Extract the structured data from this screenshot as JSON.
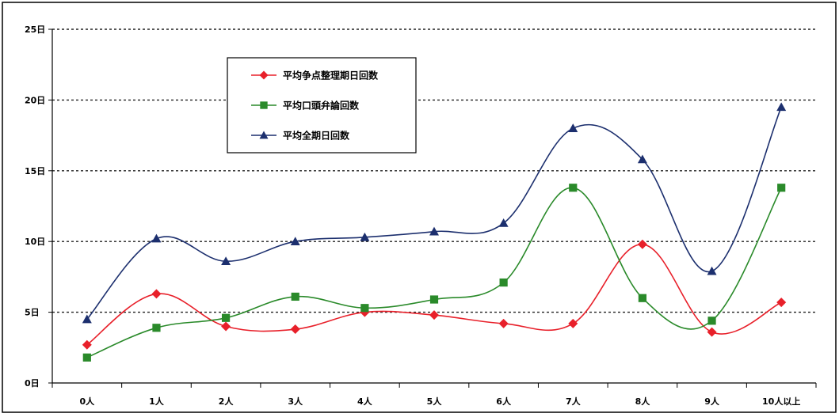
{
  "chart_data": {
    "type": "line",
    "smooth": true,
    "categories": [
      "0人",
      "1人",
      "2人",
      "3人",
      "4人",
      "5人",
      "6人",
      "7人",
      "8人",
      "9人",
      "10人以上"
    ],
    "y_ticks": [
      {
        "value": 0,
        "label": "0日"
      },
      {
        "value": 5,
        "label": "5日"
      },
      {
        "value": 10,
        "label": "10日"
      },
      {
        "value": 15,
        "label": "15日"
      },
      {
        "value": 20,
        "label": "20日"
      },
      {
        "value": 25,
        "label": "25日"
      }
    ],
    "ylim": [
      0,
      25
    ],
    "grid": true,
    "grid_style": "dashed",
    "legend_position": "top-left",
    "series": [
      {
        "name": "平均争点整理期日回数",
        "color": "#e8202a",
        "marker": "diamond",
        "values": [
          2.7,
          6.3,
          4.0,
          3.8,
          5.0,
          4.8,
          4.2,
          4.2,
          9.8,
          3.6,
          5.7
        ]
      },
      {
        "name": "平均口頭弁論回数",
        "color": "#2a8a2a",
        "marker": "square",
        "values": [
          1.8,
          3.9,
          4.6,
          6.1,
          5.3,
          5.9,
          7.1,
          13.8,
          6.0,
          4.4,
          13.8
        ]
      },
      {
        "name": "平均全期日回数",
        "color": "#1c2f6e",
        "marker": "triangle",
        "values": [
          4.5,
          10.2,
          8.6,
          10.0,
          10.3,
          10.7,
          11.3,
          18.0,
          15.8,
          7.9,
          19.5
        ]
      }
    ]
  }
}
